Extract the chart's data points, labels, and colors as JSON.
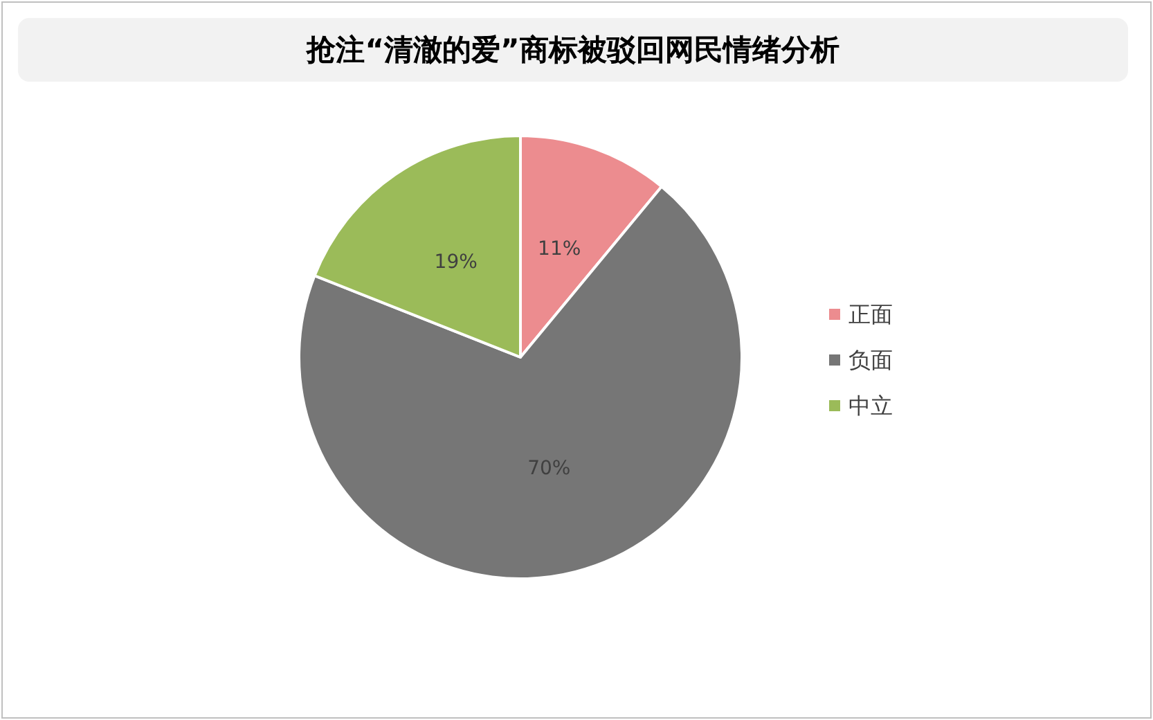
{
  "chart_data": {
    "type": "pie",
    "title": "抢注“清澈的爱”商标被驳回网民情绪分析",
    "categories": [
      "正面",
      "负面",
      "中立"
    ],
    "values": [
      11,
      70,
      19
    ],
    "colors": [
      "#ec8c8f",
      "#767676",
      "#9bbb59"
    ],
    "value_labels": [
      "11%",
      "70%",
      "19%"
    ],
    "legend": "right"
  }
}
